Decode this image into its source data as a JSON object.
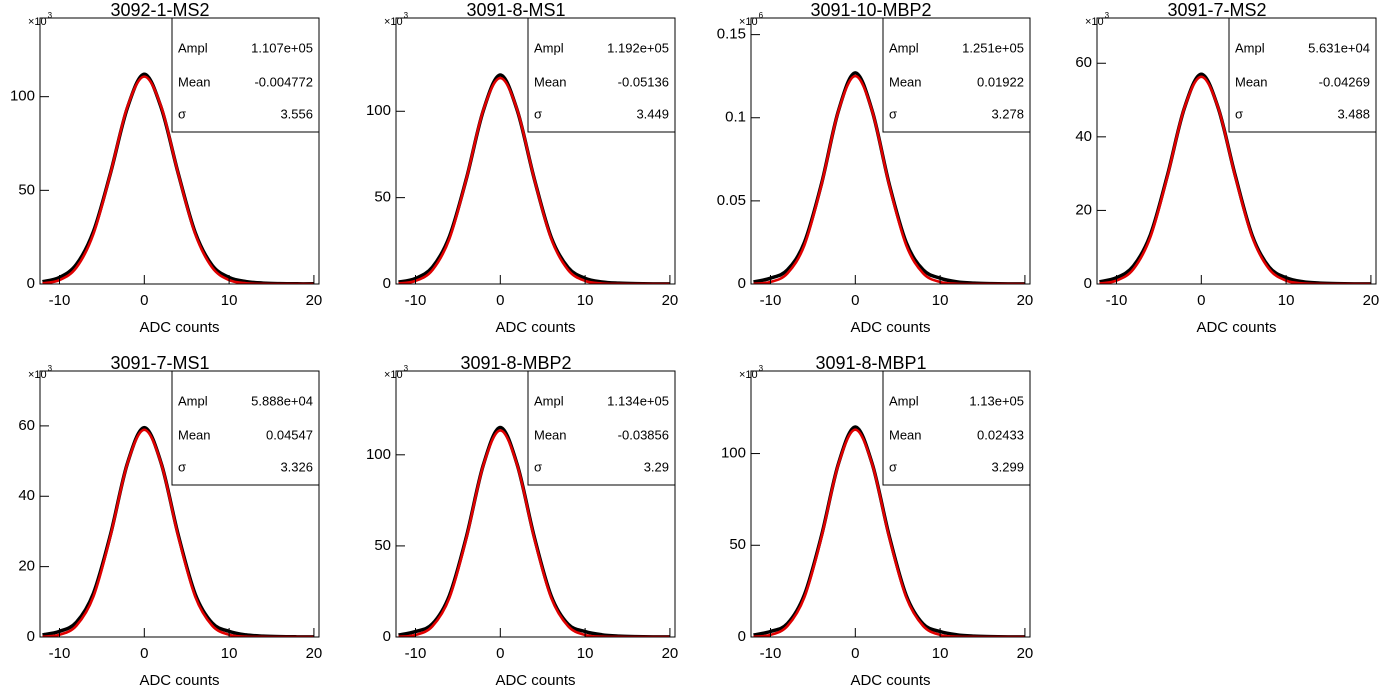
{
  "chart_data": [
    {
      "type": "line",
      "title": "3092-1-MS2",
      "y_scale_base": "×10",
      "y_scale_power": "3",
      "x_label": "ADC counts",
      "xlim": [
        -12.3,
        20.6
      ],
      "xticks": [
        -10,
        0,
        10,
        20
      ],
      "ylim": [
        0,
        142
      ],
      "yticks": [
        0,
        50,
        100
      ],
      "x": [
        -12,
        -10,
        -8,
        -6,
        -4,
        -2,
        0,
        2,
        4,
        6,
        8,
        10,
        12,
        14,
        16,
        18,
        20
      ],
      "series": [
        {
          "color": "#000000",
          "values": [
            1.2,
            3.5,
            10.5,
            28,
            59,
            94,
            112,
            94,
            59,
            27.5,
            10,
            3.5,
            1.3,
            0.5,
            0.2,
            0.1,
            0.1
          ]
        },
        {
          "color": "#e00000",
          "values": [
            0.38,
            2.1,
            8.8,
            26.7,
            58.8,
            94.5,
            110.7,
            94.5,
            58.8,
            26.7,
            8.8,
            2.1,
            0.38,
            0.04,
            0,
            0,
            0
          ]
        }
      ],
      "stats": {
        "labels": [
          "Ampl",
          "Mean",
          "σ"
        ],
        "values": [
          "1.107e+05",
          "-0.004772",
          "3.556"
        ]
      }
    },
    {
      "type": "line",
      "title": "3091-8-MS1",
      "y_scale_base": "×10",
      "y_scale_power": "3",
      "x_label": "ADC counts",
      "xlim": [
        -12.3,
        20.6
      ],
      "xticks": [
        -10,
        0,
        10,
        20
      ],
      "ylim": [
        0,
        154
      ],
      "yticks": [
        0,
        50,
        100
      ],
      "x": [
        -12,
        -10,
        -8,
        -6,
        -4,
        -2,
        0,
        2,
        4,
        6,
        8,
        10,
        12,
        14,
        16,
        18,
        20
      ],
      "series": [
        {
          "color": "#000000",
          "values": [
            1.1,
            3.2,
            9.8,
            27.5,
            61,
            100.5,
            121,
            100.5,
            61,
            27,
            9.5,
            3.3,
            1.2,
            0.5,
            0.2,
            0.1,
            0.1
          ]
        },
        {
          "color": "#e00000",
          "values": [
            0.29,
            1.8,
            8.1,
            26.2,
            60.8,
            100.7,
            119.2,
            100.7,
            60.8,
            26.2,
            8.1,
            1.8,
            0.29,
            0.03,
            0,
            0,
            0
          ]
        }
      ],
      "stats": {
        "labels": [
          "Ampl",
          "Mean",
          "σ"
        ],
        "values": [
          "1.192e+05",
          "-0.05136",
          "3.449"
        ]
      }
    },
    {
      "type": "line",
      "title": "3091-10-MBP2",
      "y_scale_base": "×10",
      "y_scale_power": "6",
      "x_label": "ADC counts",
      "xlim": [
        -12.3,
        20.6
      ],
      "xticks": [
        -10,
        0,
        10,
        20
      ],
      "ylim": [
        0,
        0.16
      ],
      "yticks": [
        0,
        0.05,
        0.1,
        0.15
      ],
      "x": [
        -12,
        -10,
        -8,
        -6,
        -4,
        -2,
        0,
        2,
        4,
        6,
        8,
        10,
        12,
        14,
        16,
        18,
        20
      ],
      "series": [
        {
          "color": "#000000",
          "values": [
            0.0012,
            0.0035,
            0.0085,
            0.025,
            0.06,
            0.104,
            0.127,
            0.104,
            0.06,
            0.025,
            0.0085,
            0.0035,
            0.0013,
            0.0005,
            0.0002,
            0.0001,
            0.0001
          ]
        },
        {
          "color": "#e00000",
          "values": [
            0.00015,
            0.0012,
            0.0064,
            0.0234,
            0.0594,
            0.1038,
            0.1251,
            0.1038,
            0.0594,
            0.0234,
            0.0064,
            0.0012,
            0.00015,
            0,
            0,
            0,
            0
          ]
        }
      ],
      "stats": {
        "labels": [
          "Ampl",
          "Mean",
          "σ"
        ],
        "values": [
          "1.251e+05",
          "0.01922",
          "3.278"
        ]
      }
    },
    {
      "type": "line",
      "title": "3091-7-MS2",
      "y_scale_base": "×10",
      "y_scale_power": "3",
      "x_label": "ADC counts",
      "xlim": [
        -12.3,
        20.6
      ],
      "xticks": [
        -10,
        0,
        10,
        20
      ],
      "ylim": [
        0,
        72.3
      ],
      "yticks": [
        0,
        20,
        40,
        60
      ],
      "x": [
        -12,
        -10,
        -8,
        -6,
        -4,
        -2,
        0,
        2,
        4,
        6,
        8,
        10,
        12,
        14,
        16,
        18,
        20
      ],
      "series": [
        {
          "color": "#000000",
          "values": [
            0.6,
            1.7,
            4.9,
            13.4,
            29.5,
            47.8,
            57,
            47.8,
            29.5,
            13.2,
            4.6,
            1.7,
            0.6,
            0.25,
            0.1,
            0.05,
            0.05
          ]
        },
        {
          "color": "#e00000",
          "values": [
            0.15,
            0.92,
            4.05,
            12.8,
            29.2,
            47.8,
            56.31,
            47.8,
            29.2,
            12.8,
            4.05,
            0.92,
            0.15,
            0.02,
            0,
            0,
            0
          ]
        }
      ],
      "stats": {
        "labels": [
          "Ampl",
          "Mean",
          "σ"
        ],
        "values": [
          "5.631e+04",
          "-0.04269",
          "3.488"
        ]
      }
    },
    {
      "type": "line",
      "title": "3091-7-MS1",
      "y_scale_base": "×10",
      "y_scale_power": "3",
      "x_label": "ADC counts",
      "xlim": [
        -12.3,
        20.6
      ],
      "xticks": [
        -10,
        0,
        10,
        20
      ],
      "ylim": [
        0,
        75.6
      ],
      "yticks": [
        0,
        20,
        40,
        60
      ],
      "x": [
        -12,
        -10,
        -8,
        -6,
        -4,
        -2,
        0,
        2,
        4,
        6,
        8,
        10,
        12,
        14,
        16,
        18,
        20
      ],
      "series": [
        {
          "color": "#000000",
          "values": [
            0.6,
            1.6,
            4.2,
            12.4,
            29,
            49.3,
            59.5,
            49.3,
            29,
            12.2,
            4,
            1.6,
            0.6,
            0.25,
            0.1,
            0.05,
            0.05
          ]
        },
        {
          "color": "#e00000",
          "values": [
            0.09,
            0.64,
            3.24,
            11.5,
            28.6,
            49.2,
            58.88,
            49.2,
            28.6,
            11.5,
            3.24,
            0.64,
            0.09,
            0.01,
            0,
            0,
            0
          ]
        }
      ],
      "stats": {
        "labels": [
          "Ampl",
          "Mean",
          "σ"
        ],
        "values": [
          "5.888e+04",
          "0.04547",
          "3.326"
        ]
      }
    },
    {
      "type": "line",
      "title": "3091-8-MBP2",
      "y_scale_base": "×10",
      "y_scale_power": "3",
      "x_label": "ADC counts",
      "xlim": [
        -12.3,
        20.6
      ],
      "xticks": [
        -10,
        0,
        10,
        20
      ],
      "ylim": [
        0,
        146
      ],
      "yticks": [
        0,
        50,
        100
      ],
      "x": [
        -12,
        -10,
        -8,
        -6,
        -4,
        -2,
        0,
        2,
        4,
        6,
        8,
        10,
        12,
        14,
        16,
        18,
        20
      ],
      "series": [
        {
          "color": "#000000",
          "values": [
            1.1,
            3,
            7.2,
            22.8,
            55,
            94.5,
            115,
            94.5,
            55,
            22.5,
            7,
            3,
            1.2,
            0.5,
            0.2,
            0.1,
            0.1
          ]
        },
        {
          "color": "#e00000",
          "values": [
            0.15,
            1.12,
            5.9,
            21.5,
            54.2,
            94.2,
            113.4,
            94.2,
            54.2,
            21.5,
            5.9,
            1.12,
            0.15,
            0.01,
            0,
            0,
            0
          ]
        }
      ],
      "stats": {
        "labels": [
          "Ampl",
          "Mean",
          "σ"
        ],
        "values": [
          "1.134e+05",
          "-0.03856",
          "3.29"
        ]
      }
    },
    {
      "type": "line",
      "title": "3091-8-MBP1",
      "y_scale_base": "×10",
      "y_scale_power": "3",
      "x_label": "ADC counts",
      "xlim": [
        -12.3,
        20.6
      ],
      "xticks": [
        -10,
        0,
        10,
        20
      ],
      "ylim": [
        0,
        145
      ],
      "yticks": [
        0,
        50,
        100
      ],
      "x": [
        -12,
        -10,
        -8,
        -6,
        -4,
        -2,
        0,
        2,
        4,
        6,
        8,
        10,
        12,
        14,
        16,
        18,
        20
      ],
      "series": [
        {
          "color": "#000000",
          "values": [
            1.1,
            3,
            7.3,
            23,
            55,
            94.3,
            114.5,
            94.3,
            55,
            22.7,
            7.1,
            3,
            1.2,
            0.5,
            0.2,
            0.1,
            0.1
          ]
        },
        {
          "color": "#e00000",
          "values": [
            0.15,
            1.13,
            6,
            21.7,
            54.2,
            94,
            113,
            94,
            54.2,
            21.7,
            6,
            1.13,
            0.15,
            0.01,
            0,
            0,
            0
          ]
        }
      ],
      "stats": {
        "labels": [
          "Ampl",
          "Mean",
          "σ"
        ],
        "values": [
          "1.13e+05",
          "0.02433",
          "3.299"
        ]
      }
    }
  ]
}
